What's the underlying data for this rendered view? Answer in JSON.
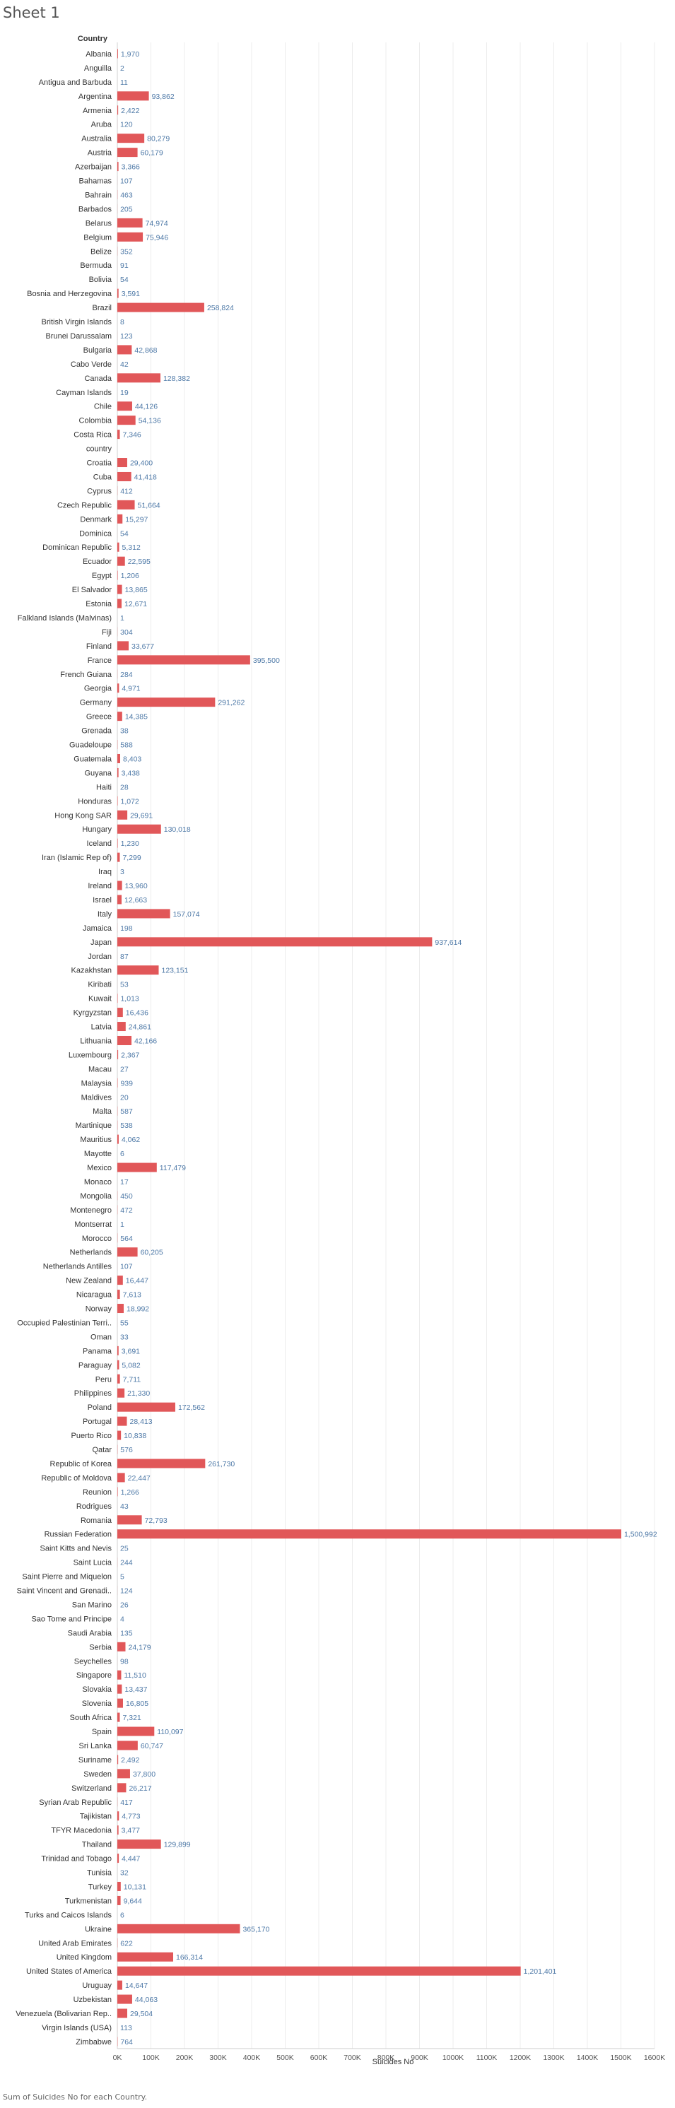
{
  "sheet": {
    "title": "Sheet 1"
  },
  "footer": {
    "text": "Sum of Suicides No for each Country."
  },
  "chart_data": {
    "type": "bar",
    "orientation": "horizontal",
    "row_header": "Country",
    "xlabel": "Suicides No",
    "xlim": [
      0,
      1600000
    ],
    "ticks": [
      "0K",
      "100K",
      "200K",
      "300K",
      "400K",
      "500K",
      "600K",
      "700K",
      "800K",
      "900K",
      "1000K",
      "1100K",
      "1200K",
      "1300K",
      "1400K",
      "1500K",
      "1600K"
    ],
    "grid": true,
    "bar_color": "#e15759",
    "label_color": "#4e79a7",
    "categories": [
      "Albania",
      "Anguilla",
      "Antigua and Barbuda",
      "Argentina",
      "Armenia",
      "Aruba",
      "Australia",
      "Austria",
      "Azerbaijan",
      "Bahamas",
      "Bahrain",
      "Barbados",
      "Belarus",
      "Belgium",
      "Belize",
      "Bermuda",
      "Bolivia",
      "Bosnia and Herzegovina",
      "Brazil",
      "British Virgin Islands",
      "Brunei Darussalam",
      "Bulgaria",
      "Cabo Verde",
      "Canada",
      "Cayman Islands",
      "Chile",
      "Colombia",
      "Costa Rica",
      "country",
      "Croatia",
      "Cuba",
      "Cyprus",
      "Czech Republic",
      "Denmark",
      "Dominica",
      "Dominican Republic",
      "Ecuador",
      "Egypt",
      "El Salvador",
      "Estonia",
      "Falkland Islands (Malvinas)",
      "Fiji",
      "Finland",
      "France",
      "French Guiana",
      "Georgia",
      "Germany",
      "Greece",
      "Grenada",
      "Guadeloupe",
      "Guatemala",
      "Guyana",
      "Haiti",
      "Honduras",
      "Hong Kong SAR",
      "Hungary",
      "Iceland",
      "Iran (Islamic Rep of)",
      "Iraq",
      "Ireland",
      "Israel",
      "Italy",
      "Jamaica",
      "Japan",
      "Jordan",
      "Kazakhstan",
      "Kiribati",
      "Kuwait",
      "Kyrgyzstan",
      "Latvia",
      "Lithuania",
      "Luxembourg",
      "Macau",
      "Malaysia",
      "Maldives",
      "Malta",
      "Martinique",
      "Mauritius",
      "Mayotte",
      "Mexico",
      "Monaco",
      "Mongolia",
      "Montenegro",
      "Montserrat",
      "Morocco",
      "Netherlands",
      "Netherlands Antilles",
      "New Zealand",
      "Nicaragua",
      "Norway",
      "Occupied Palestinian Terri..",
      "Oman",
      "Panama",
      "Paraguay",
      "Peru",
      "Philippines",
      "Poland",
      "Portugal",
      "Puerto Rico",
      "Qatar",
      "Republic of Korea",
      "Republic of Moldova",
      "Reunion",
      "Rodrigues",
      "Romania",
      "Russian Federation",
      "Saint Kitts and Nevis",
      "Saint Lucia",
      "Saint Pierre and Miquelon",
      "Saint Vincent and Grenadi..",
      "San Marino",
      "Sao Tome and Principe",
      "Saudi Arabia",
      "Serbia",
      "Seychelles",
      "Singapore",
      "Slovakia",
      "Slovenia",
      "South Africa",
      "Spain",
      "Sri Lanka",
      "Suriname",
      "Sweden",
      "Switzerland",
      "Syrian Arab Republic",
      "Tajikistan",
      "TFYR Macedonia",
      "Thailand",
      "Trinidad and Tobago",
      "Tunisia",
      "Turkey",
      "Turkmenistan",
      "Turks and Caicos Islands",
      "Ukraine",
      "United Arab Emirates",
      "United Kingdom",
      "United States of America",
      "Uruguay",
      "Uzbekistan",
      "Venezuela (Bolivarian Rep..",
      "Virgin Islands (USA)",
      "Zimbabwe"
    ],
    "values": [
      1970,
      2,
      11,
      93862,
      2422,
      120,
      80279,
      60179,
      3366,
      107,
      463,
      205,
      74974,
      75946,
      352,
      91,
      54,
      3591,
      258824,
      8,
      123,
      42868,
      42,
      128382,
      19,
      44126,
      54136,
      7346,
      0,
      29400,
      41418,
      412,
      51664,
      15297,
      54,
      5312,
      22595,
      1206,
      13865,
      12671,
      1,
      304,
      33677,
      395500,
      284,
      4971,
      291262,
      14385,
      38,
      588,
      8403,
      3438,
      28,
      1072,
      29691,
      130018,
      1230,
      7299,
      3,
      13960,
      12663,
      157074,
      198,
      937614,
      87,
      123151,
      53,
      1013,
      16436,
      24861,
      42166,
      2367,
      27,
      939,
      20,
      587,
      538,
      4062,
      6,
      117479,
      17,
      450,
      472,
      1,
      564,
      60205,
      107,
      16447,
      7613,
      18992,
      55,
      33,
      3691,
      5082,
      7711,
      21330,
      172562,
      28413,
      10838,
      576,
      261730,
      22447,
      1266,
      43,
      72793,
      1500992,
      25,
      244,
      5,
      124,
      26,
      4,
      135,
      24179,
      98,
      11510,
      13437,
      16805,
      7321,
      110097,
      60747,
      2492,
      37800,
      26217,
      417,
      4773,
      3477,
      129899,
      4447,
      32,
      10131,
      9644,
      6,
      365170,
      622,
      166314,
      1201401,
      14647,
      44063,
      29504,
      113,
      764
    ],
    "data_labels": [
      "1,970",
      "2",
      "11",
      "93,862",
      "2,422",
      "120",
      "80,279",
      "60,179",
      "3,366",
      "107",
      "463",
      "205",
      "74,974",
      "75,946",
      "352",
      "91",
      "54",
      "3,591",
      "258,824",
      "8",
      "123",
      "42,868",
      "42",
      "128,382",
      "19",
      "44,126",
      "54,136",
      "7,346",
      "",
      "29,400",
      "41,418",
      "412",
      "51,664",
      "15,297",
      "54",
      "5,312",
      "22,595",
      "1,206",
      "13,865",
      "12,671",
      "1",
      "304",
      "33,677",
      "395,500",
      "284",
      "4,971",
      "291,262",
      "14,385",
      "38",
      "588",
      "8,403",
      "3,438",
      "28",
      "1,072",
      "29,691",
      "130,018",
      "1,230",
      "7,299",
      "3",
      "13,960",
      "12,663",
      "157,074",
      "198",
      "937,614",
      "87",
      "123,151",
      "53",
      "1,013",
      "16,436",
      "24,861",
      "42,166",
      "2,367",
      "27",
      "939",
      "20",
      "587",
      "538",
      "4,062",
      "6",
      "117,479",
      "17",
      "450",
      "472",
      "1",
      "564",
      "60,205",
      "107",
      "16,447",
      "7,613",
      "18,992",
      "55",
      "33",
      "3,691",
      "5,082",
      "7,711",
      "21,330",
      "172,562",
      "28,413",
      "10,838",
      "576",
      "261,730",
      "22,447",
      "1,266",
      "43",
      "72,793",
      "1,500,992",
      "25",
      "244",
      "5",
      "124",
      "26",
      "4",
      "135",
      "24,179",
      "98",
      "11,510",
      "13,437",
      "16,805",
      "7,321",
      "110,097",
      "60,747",
      "2,492",
      "37,800",
      "26,217",
      "417",
      "4,773",
      "3,477",
      "129,899",
      "4,447",
      "32",
      "10,131",
      "9,644",
      "6",
      "365,170",
      "622",
      "166,314",
      "1,201,401",
      "14,647",
      "44,063",
      "29,504",
      "113",
      "764"
    ]
  }
}
